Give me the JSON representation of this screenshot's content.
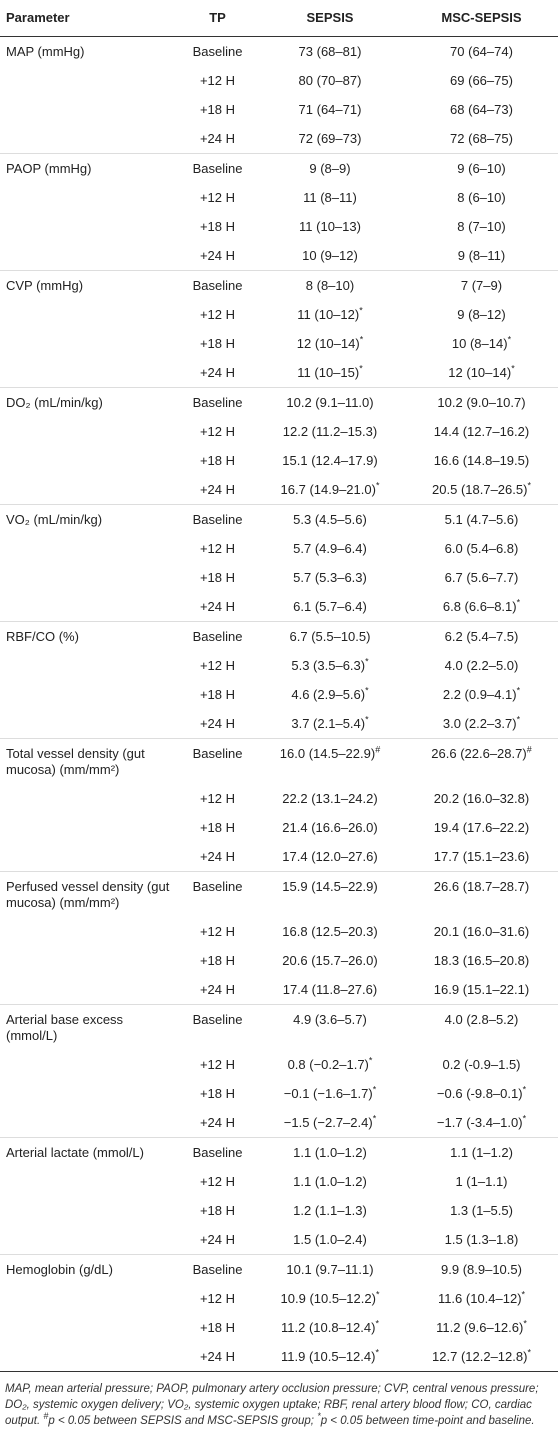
{
  "table": {
    "columns": [
      "Parameter",
      "TP",
      "SEPSIS",
      "MSC-SEPSIS"
    ],
    "groups": [
      {
        "parameter": "MAP (mmHg)",
        "rows": [
          {
            "tp": "Baseline",
            "sepsis": "73 (68–81)",
            "msc": "70 (64–74)"
          },
          {
            "tp": "+12 H",
            "sepsis": "80 (70–87)",
            "msc": "69 (66–75)"
          },
          {
            "tp": "+18 H",
            "sepsis": "71 (64–71)",
            "msc": "68 (64–73)"
          },
          {
            "tp": "+24 H",
            "sepsis": "72 (69–73)",
            "msc": "72 (68–75)"
          }
        ]
      },
      {
        "parameter": "PAOP (mmHg)",
        "rows": [
          {
            "tp": "Baseline",
            "sepsis": "9 (8–9)",
            "msc": "9 (6–10)"
          },
          {
            "tp": "+12 H",
            "sepsis": "11 (8–11)",
            "msc": "8 (6–10)"
          },
          {
            "tp": "+18 H",
            "sepsis": "11 (10–13)",
            "msc": "8 (7–10)"
          },
          {
            "tp": "+24 H",
            "sepsis": "10 (9–12)",
            "msc": "9 (8–11)"
          }
        ]
      },
      {
        "parameter": "CVP (mmHg)",
        "rows": [
          {
            "tp": "Baseline",
            "sepsis": "8 (8–10)",
            "msc": "7 (7–9)"
          },
          {
            "tp": "+12 H",
            "sepsis": "11 (10–12)",
            "sepsis_sup": "*",
            "msc": "9 (8–12)"
          },
          {
            "tp": "+18 H",
            "sepsis": "12 (10–14)",
            "sepsis_sup": "*",
            "msc": "10 (8–14)",
            "msc_sup": "*"
          },
          {
            "tp": "+24 H",
            "sepsis": "11 (10–15)",
            "sepsis_sup": "*",
            "msc": "12 (10–14)",
            "msc_sup": "*"
          }
        ]
      },
      {
        "parameter": "DO₂ (mL/min/kg)",
        "rows": [
          {
            "tp": "Baseline",
            "sepsis": "10.2 (9.1–11.0)",
            "msc": "10.2 (9.0–10.7)"
          },
          {
            "tp": "+12 H",
            "sepsis": "12.2 (11.2–15.3)",
            "msc": "14.4 (12.7–16.2)"
          },
          {
            "tp": "+18 H",
            "sepsis": "15.1 (12.4–17.9)",
            "msc": "16.6 (14.8–19.5)"
          },
          {
            "tp": "+24 H",
            "sepsis": "16.7 (14.9–21.0)",
            "sepsis_sup": "*",
            "msc": "20.5 (18.7–26.5)",
            "msc_sup": "*"
          }
        ]
      },
      {
        "parameter": "VO₂ (mL/min/kg)",
        "rows": [
          {
            "tp": "Baseline",
            "sepsis": "5.3 (4.5–5.6)",
            "msc": "5.1 (4.7–5.6)"
          },
          {
            "tp": "+12 H",
            "sepsis": "5.7 (4.9–6.4)",
            "msc": "6.0 (5.4–6.8)"
          },
          {
            "tp": "+18 H",
            "sepsis": "5.7 (5.3–6.3)",
            "msc": "6.7 (5.6–7.7)"
          },
          {
            "tp": "+24 H",
            "sepsis": "6.1 (5.7–6.4)",
            "msc": "6.8 (6.6–8.1)",
            "msc_sup": "*"
          }
        ]
      },
      {
        "parameter": "RBF/CO (%)",
        "rows": [
          {
            "tp": "Baseline",
            "sepsis": "6.7 (5.5–10.5)",
            "msc": "6.2 (5.4–7.5)"
          },
          {
            "tp": "+12 H",
            "sepsis": "5.3 (3.5–6.3)",
            "sepsis_sup": "*",
            "msc": "4.0 (2.2–5.0)"
          },
          {
            "tp": "+18 H",
            "sepsis": "4.6 (2.9–5.6)",
            "sepsis_sup": "*",
            "msc": "2.2 (0.9–4.1)",
            "msc_sup": "*"
          },
          {
            "tp": "+24 H",
            "sepsis": "3.7 (2.1–5.4)",
            "sepsis_sup": "*",
            "msc": "3.0 (2.2–3.7)",
            "msc_sup": "*"
          }
        ]
      },
      {
        "parameter": "Total vessel density (gut mucosa) (mm/mm²)",
        "rows": [
          {
            "tp": "Baseline",
            "sepsis": "16.0 (14.5–22.9)",
            "sepsis_sup": "#",
            "msc": "26.6 (22.6–28.7)",
            "msc_sup": "#"
          },
          {
            "tp": "+12 H",
            "sepsis": "22.2 (13.1–24.2)",
            "msc": "20.2 (16.0–32.8)"
          },
          {
            "tp": "+18 H",
            "sepsis": "21.4 (16.6–26.0)",
            "msc": "19.4 (17.6–22.2)"
          },
          {
            "tp": "+24 H",
            "sepsis": "17.4 (12.0–27.6)",
            "msc": "17.7 (15.1–23.6)"
          }
        ]
      },
      {
        "parameter": "Perfused vessel density (gut mucosa) (mm/mm²)",
        "rows": [
          {
            "tp": "Baseline",
            "sepsis": "15.9 (14.5–22.9)",
            "msc": "26.6 (18.7–28.7)"
          },
          {
            "tp": "+12 H",
            "sepsis": "16.8 (12.5–20.3)",
            "msc": "20.1 (16.0–31.6)"
          },
          {
            "tp": "+18 H",
            "sepsis": "20.6 (15.7–26.0)",
            "msc": "18.3 (16.5–20.8)"
          },
          {
            "tp": "+24 H",
            "sepsis": "17.4 (11.8–27.6)",
            "msc": "16.9 (15.1–22.1)"
          }
        ]
      },
      {
        "parameter": "Arterial base excess (mmol/L)",
        "rows": [
          {
            "tp": "Baseline",
            "sepsis": "4.9 (3.6–5.7)",
            "msc": "4.0 (2.8–5.2)"
          },
          {
            "tp": "+12 H",
            "sepsis": "0.8 (−0.2–1.7)",
            "sepsis_sup": "*",
            "msc": "0.2 (-0.9–1.5)"
          },
          {
            "tp": "+18 H",
            "sepsis": "−0.1 (−1.6–1.7)",
            "sepsis_sup": "*",
            "msc": "−0.6 (-9.8–0.1)",
            "msc_sup": "*"
          },
          {
            "tp": "+24 H",
            "sepsis": "−1.5 (−2.7–2.4)",
            "sepsis_sup": "*",
            "msc": "−1.7 (-3.4–1.0)",
            "msc_sup": "*"
          }
        ]
      },
      {
        "parameter": "Arterial lactate (mmol/L)",
        "rows": [
          {
            "tp": "Baseline",
            "sepsis": "1.1 (1.0–1.2)",
            "msc": "1.1 (1–1.2)"
          },
          {
            "tp": "+12 H",
            "sepsis": "1.1 (1.0–1.2)",
            "msc": "1 (1–1.1)"
          },
          {
            "tp": "+18 H",
            "sepsis": "1.2 (1.1–1.3)",
            "msc": "1.3 (1–5.5)"
          },
          {
            "tp": "+24 H",
            "sepsis": "1.5 (1.0–2.4)",
            "msc": "1.5 (1.3–1.8)"
          }
        ]
      },
      {
        "parameter": "Hemoglobin (g/dL)",
        "rows": [
          {
            "tp": "Baseline",
            "sepsis": "10.1 (9.7–11.1)",
            "msc": "9.9 (8.9–10.5)"
          },
          {
            "tp": "+12 H",
            "sepsis": "10.9 (10.5–12.2)",
            "sepsis_sup": "*",
            "msc": "11.6 (10.4–12)",
            "msc_sup": "*"
          },
          {
            "tp": "+18 H",
            "sepsis": "11.2 (10.8–12.4)",
            "sepsis_sup": "*",
            "msc": "11.2 (9.6–12.6)",
            "msc_sup": "*"
          },
          {
            "tp": "+24 H",
            "sepsis": "11.9 (10.5–12.4)",
            "sepsis_sup": "*",
            "msc": "12.7 (12.2–12.8)",
            "msc_sup": "*"
          }
        ]
      }
    ]
  },
  "footnote": [
    {
      "text": "MAP, mean arterial pressure; PAOP, pulmonary artery occlusion pressure; CVP, central venous pressure; DO₂, systemic oxygen delivery; VO₂, systemic oxygen uptake; RBF, renal artery blood flow; CO, cardiac output. "
    },
    {
      "sup": "#"
    },
    {
      "text": "p < 0.05 between SEPSIS and MSC-SEPSIS group; "
    },
    {
      "sup": "*"
    },
    {
      "text": "p < 0.05 between time-point and baseline."
    }
  ]
}
